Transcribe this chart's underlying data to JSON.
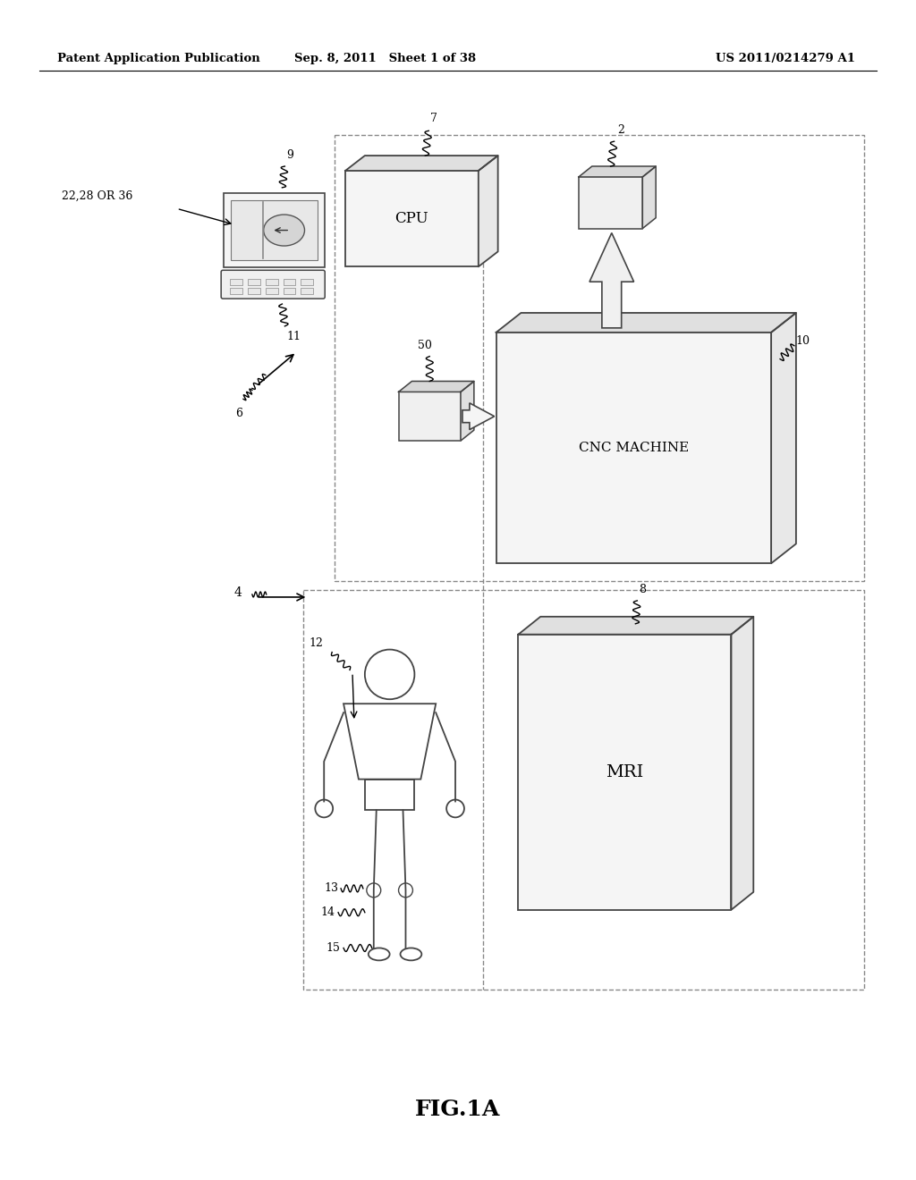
{
  "bg_color": "#ffffff",
  "header_left": "Patent Application Publication",
  "header_mid": "Sep. 8, 2011   Sheet 1 of 38",
  "header_right": "US 2011/0214279 A1",
  "footer_label": "FIG.1A"
}
